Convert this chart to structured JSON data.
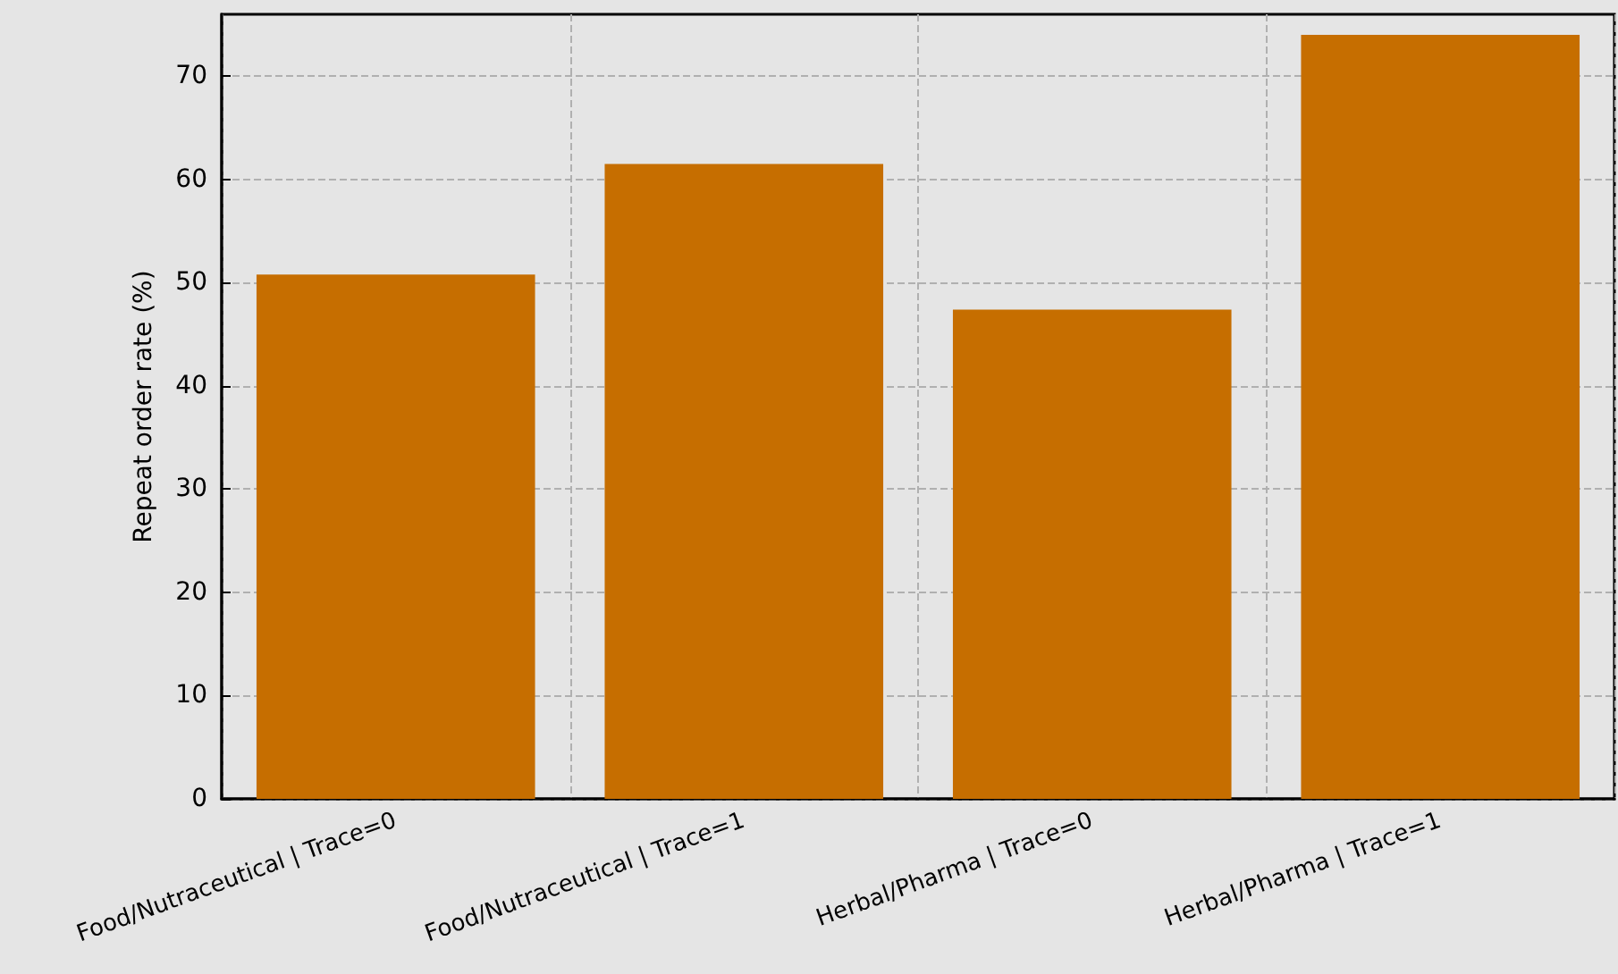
{
  "chart_data": {
    "type": "bar",
    "ylabel": "Repeat order rate (%)",
    "categories": [
      "Food/Nutraceutical | Trace=0",
      "Food/Nutraceutical | Trace=1",
      "Herbal/Pharma | Trace=0",
      "Herbal/Pharma | Trace=1"
    ],
    "values": [
      50.8,
      61.5,
      47.4,
      74.0
    ],
    "color": "#c66e00",
    "ylim": [
      0,
      76
    ],
    "yticks": [
      0,
      10,
      20,
      30,
      40,
      50,
      60,
      70
    ],
    "grid": true
  }
}
